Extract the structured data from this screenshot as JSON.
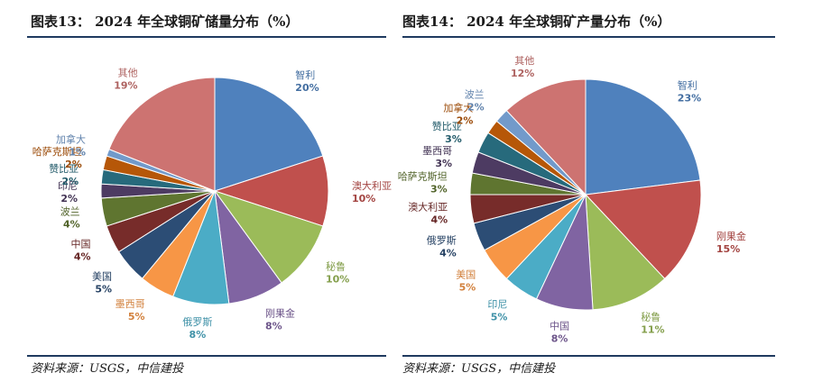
{
  "charts": [
    {
      "figure_title": "图表13：  2024 年全球铜矿储量分布（%）",
      "source": "资料来源：USGS，中信建投"
    },
    {
      "figure_title": "图表14：  2024 年全球铜矿产量分布（%）",
      "source": "资料来源：USGS，中信建投"
    }
  ],
  "chart_data": [
    {
      "type": "pie",
      "title": "2024 年全球铜矿储量分布（%）",
      "slices": [
        {
          "name": "智利",
          "value": 20,
          "label": "20%",
          "color": "#4f81bd"
        },
        {
          "name": "澳大利亚",
          "value": 10,
          "label": "10%",
          "color": "#c0504d"
        },
        {
          "name": "秘鲁",
          "value": 10,
          "label": "10%",
          "color": "#9bbb59"
        },
        {
          "name": "刚果金",
          "value": 8,
          "label": "8%",
          "color": "#8064a2"
        },
        {
          "name": "俄罗斯",
          "value": 8,
          "label": "8%",
          "color": "#4bacc6"
        },
        {
          "name": "墨西哥",
          "value": 5,
          "label": "5%",
          "color": "#f79646"
        },
        {
          "name": "美国",
          "value": 5,
          "label": "5%",
          "color": "#2c4d75"
        },
        {
          "name": "中国",
          "value": 4,
          "label": "4%",
          "color": "#772c2a"
        },
        {
          "name": "波兰",
          "value": 4,
          "label": "4%",
          "color": "#5f7530"
        },
        {
          "name": "印尼",
          "value": 2,
          "label": "2%",
          "color": "#4d3b62"
        },
        {
          "name": "赞比亚",
          "value": 2,
          "label": "2%",
          "color": "#276a7c"
        },
        {
          "name": "哈萨克斯坦",
          "value": 2,
          "label": "2%",
          "color": "#b65708"
        },
        {
          "name": "加拿大",
          "value": 1,
          "label": "1%",
          "color": "#729aca"
        },
        {
          "name": "其他",
          "value": 19,
          "label": "19%",
          "color": "#cd7371"
        }
      ]
    },
    {
      "type": "pie",
      "title": "2024 年全球铜矿产量分布（%）",
      "slices": [
        {
          "name": "智利",
          "value": 23,
          "label": "23%",
          "color": "#4f81bd"
        },
        {
          "name": "刚果金",
          "value": 15,
          "label": "15%",
          "color": "#c0504d"
        },
        {
          "name": "秘鲁",
          "value": 11,
          "label": "11%",
          "color": "#9bbb59"
        },
        {
          "name": "中国",
          "value": 8,
          "label": "8%",
          "color": "#8064a2"
        },
        {
          "name": "印尼",
          "value": 5,
          "label": "5%",
          "color": "#4bacc6"
        },
        {
          "name": "美国",
          "value": 5,
          "label": "5%",
          "color": "#f79646"
        },
        {
          "name": "俄罗斯",
          "value": 4,
          "label": "4%",
          "color": "#2c4d75"
        },
        {
          "name": "澳大利亚",
          "value": 4,
          "label": "4%",
          "color": "#772c2a"
        },
        {
          "name": "哈萨克斯坦",
          "value": 3,
          "label": "3%",
          "color": "#5f7530"
        },
        {
          "name": "墨西哥",
          "value": 3,
          "label": "3%",
          "color": "#4d3b62"
        },
        {
          "name": "赞比亚",
          "value": 3,
          "label": "3%",
          "color": "#276a7c"
        },
        {
          "name": "加拿大",
          "value": 2,
          "label": "2%",
          "color": "#b65708"
        },
        {
          "name": "波兰",
          "value": 2,
          "label": "2%",
          "color": "#729aca"
        },
        {
          "name": "其他",
          "value": 12,
          "label": "12%",
          "color": "#cd7371"
        }
      ]
    }
  ]
}
